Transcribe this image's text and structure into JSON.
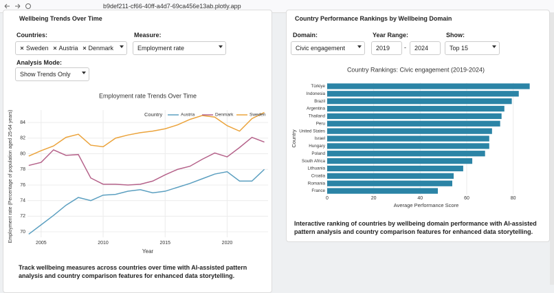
{
  "browser": {
    "url": "b9def211-cf66-40ff-a4d7-69ca456e13ab.plotly.app"
  },
  "left_panel": {
    "title": "Wellbeing Trends Over Time",
    "countries_label": "Countries:",
    "countries": [
      "Sweden",
      "Austria",
      "Denmark"
    ],
    "measure_label": "Measure:",
    "measure": "Employment rate",
    "mode_label": "Analysis Mode:",
    "mode": "Show Trends Only",
    "description": "Track wellbeing measures across countries over time with AI-assisted pattern analysis and country comparison features for enhanced data storytelling."
  },
  "right_panel": {
    "title": "Country Performance Rankings by Wellbeing Domain",
    "domain_label": "Domain:",
    "domain": "Civic engagement",
    "year_range_label": "Year Range:",
    "year_from": "2019",
    "year_separator": "-",
    "year_to": "2024",
    "show_label": "Show:",
    "show": "Top 15",
    "description": "Interactive ranking of countries by wellbeing domain performance with AI-assisted pattern analysis and country comparison features for enhanced data storytelling."
  },
  "chart_data": [
    {
      "type": "line",
      "title": "Employment rate Trends Over Time",
      "xlabel": "Year",
      "ylabel": "Employment rate (Percentage of population aged 25-64 years)",
      "legend_title": "Country",
      "grid": true,
      "x": [
        2004,
        2005,
        2006,
        2007,
        2008,
        2009,
        2010,
        2011,
        2012,
        2013,
        2014,
        2015,
        2016,
        2017,
        2018,
        2019,
        2020,
        2021,
        2022,
        2023
      ],
      "series": [
        {
          "name": "Austria",
          "color": "#5b9fc0",
          "values": [
            69.7,
            70.9,
            72.1,
            73.4,
            74.4,
            74.0,
            74.7,
            74.8,
            75.2,
            75.4,
            75.0,
            75.2,
            75.7,
            76.2,
            76.8,
            77.4,
            77.7,
            76.5,
            76.5,
            78.0
          ]
        },
        {
          "name": "Denmark",
          "color": "#b5628a",
          "values": [
            78.5,
            78.9,
            80.5,
            79.8,
            79.9,
            76.9,
            76.1,
            76.1,
            76.0,
            76.1,
            76.5,
            77.3,
            78.0,
            78.4,
            79.3,
            80.1,
            79.6,
            80.8,
            82.1,
            81.5
          ]
        },
        {
          "name": "Sweden",
          "color": "#eba33b",
          "values": [
            79.7,
            80.4,
            81.0,
            82.1,
            82.5,
            81.1,
            80.9,
            82.0,
            82.4,
            82.7,
            82.9,
            83.2,
            83.7,
            84.4,
            84.9,
            84.7,
            83.6,
            82.9,
            84.5,
            85.3
          ]
        }
      ],
      "xlim": [
        2003.9,
        2023.3
      ],
      "xticks": [
        2005,
        2010,
        2015,
        2020
      ],
      "ylim": [
        69.3,
        85.6
      ],
      "yticks": [
        70,
        72,
        74,
        76,
        78,
        80,
        82,
        84
      ]
    },
    {
      "type": "hbar",
      "title": "Country Rankings: Civic engagement (2019-2024)",
      "xlabel": "Average Performance Score",
      "ylabel": "Country",
      "color": "#2b84a6",
      "grid": true,
      "categories": [
        "Türkiye",
        "Indonesia",
        "Brazil",
        "Argentina",
        "Thailand",
        "Peru",
        "United States",
        "Israel",
        "Hungary",
        "Poland",
        "South Africa",
        "Lithuania",
        "Croatia",
        "Romania",
        "France"
      ],
      "values": [
        87.1,
        82.4,
        79.4,
        76.2,
        75.0,
        74.4,
        70.9,
        69.7,
        69.7,
        67.9,
        62.4,
        58.5,
        54.4,
        53.8,
        47.6
      ],
      "xlim": [
        0,
        87.5
      ],
      "xticks": [
        0,
        20,
        40,
        60,
        80
      ]
    }
  ]
}
